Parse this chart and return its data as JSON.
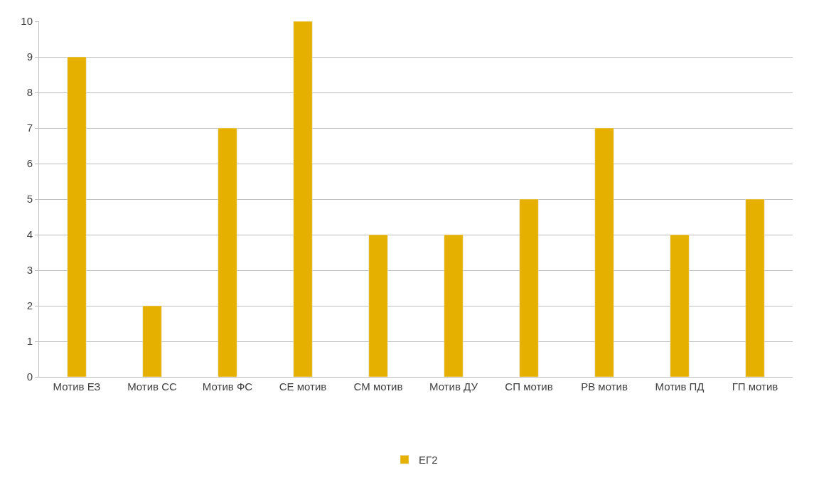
{
  "chart_data": {
    "type": "bar",
    "categories": [
      "Мотив ЕЗ",
      "Мотив СС",
      "Мотив ФС",
      "СЕ мотив",
      "СМ мотив",
      "Мотив ДУ",
      "СП мотив",
      "РВ мотив",
      "Мотив ПД",
      "ГП мотив"
    ],
    "series": [
      {
        "name": "ЕГ2",
        "color": "#e6b000",
        "values": [
          9,
          2,
          7,
          10,
          4,
          4,
          5,
          7,
          4,
          5
        ]
      }
    ],
    "ylim": [
      0,
      10
    ],
    "yticks": [
      0,
      1,
      2,
      3,
      4,
      5,
      6,
      7,
      8,
      9,
      10
    ],
    "grid": "y",
    "legend": "bottom"
  }
}
